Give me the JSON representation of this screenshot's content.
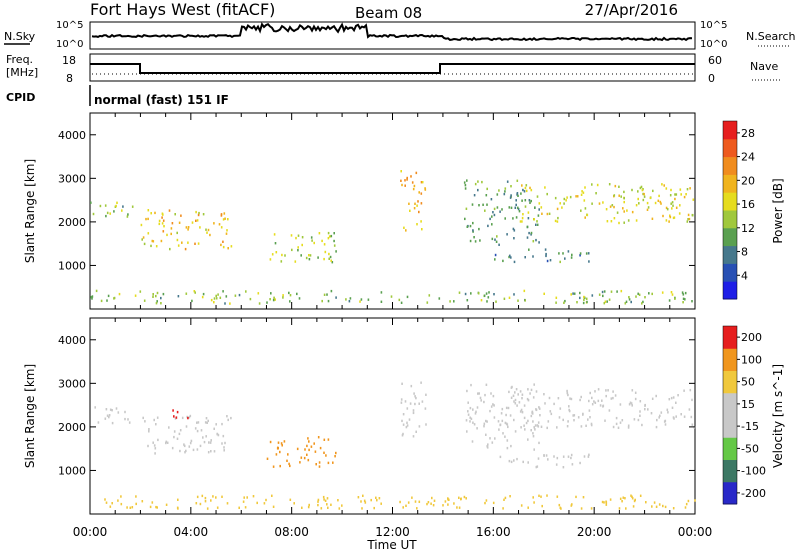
{
  "header": {
    "title": "Fort Hays West (fitACF)",
    "beam": "Beam 08",
    "date": "27/Apr/2016"
  },
  "panels": {
    "noise": {
      "left_label": "N.Sky",
      "right_label": "N.Search",
      "left_ticks": [
        "10^5",
        "10^0"
      ],
      "right_ticks": [
        "10^5",
        "10^0"
      ]
    },
    "freq": {
      "left_label_1": "Freq.",
      "left_label_2": "[MHz]",
      "right_label": "Nave",
      "left_ticks": [
        "18",
        "8"
      ],
      "right_ticks": [
        "60",
        "0"
      ]
    },
    "cpid": {
      "label": "CPID",
      "text": "normal (fast) 151 IF"
    }
  },
  "chart_data": [
    {
      "type": "heatmap",
      "title": "",
      "xlabel": "Time UT",
      "ylabel": "Slant Range [km]",
      "xlim": [
        "00:00",
        "24:00"
      ],
      "ylim": [
        0,
        4500
      ],
      "x_ticks": [
        "00:00",
        "04:00",
        "08:00",
        "12:00",
        "16:00",
        "20:00",
        "00:00"
      ],
      "y_ticks": [
        1000,
        2000,
        3000,
        4000
      ],
      "colorbar": {
        "label": "Power [dB]",
        "ticks": [
          4,
          8,
          12,
          16,
          20,
          24,
          28
        ],
        "range": [
          0,
          30
        ],
        "colors": [
          "#1e1ee6",
          "#2850b4",
          "#46788c",
          "#5aa050",
          "#a0c83c",
          "#e6dc1e",
          "#f0b41e",
          "#f08c1e",
          "#ee5a1e",
          "#e61e1e"
        ]
      },
      "regions": [
        {
          "t": [
            0.0,
            1.8
          ],
          "r": [
            2100,
            2500
          ],
          "v": 12
        },
        {
          "t": [
            2.0,
            5.6
          ],
          "r": [
            1400,
            2300
          ],
          "v": 18
        },
        {
          "t": [
            7.0,
            9.8
          ],
          "r": [
            1100,
            1800
          ],
          "v": 14
        },
        {
          "t": [
            12.3,
            13.3
          ],
          "r": [
            1800,
            3200
          ],
          "v": 20
        },
        {
          "t": [
            14.8,
            17.8
          ],
          "r": [
            1500,
            3000
          ],
          "v": 10
        },
        {
          "t": [
            16.0,
            20.0
          ],
          "r": [
            1100,
            1400
          ],
          "v": 9
        },
        {
          "t": [
            17.0,
            24.0
          ],
          "r": [
            2000,
            2900
          ],
          "v": 16
        },
        {
          "t": [
            0.0,
            24.0
          ],
          "r": [
            150,
            450
          ],
          "v": 12
        }
      ]
    },
    {
      "type": "heatmap",
      "title": "",
      "xlabel": "Time UT",
      "ylabel": "Slant Range [km]",
      "xlim": [
        "00:00",
        "24:00"
      ],
      "ylim": [
        0,
        4500
      ],
      "x_ticks": [
        "00:00",
        "04:00",
        "08:00",
        "12:00",
        "16:00",
        "20:00",
        "00:00"
      ],
      "y_ticks": [
        1000,
        2000,
        3000,
        4000
      ],
      "colorbar": {
        "label": "Velocity [m s^-1]",
        "ticks": [
          200,
          100,
          50,
          15,
          -15,
          -50,
          -100,
          -200
        ],
        "colors": [
          "#2828c8",
          "#3c7864",
          "#64c846",
          "#c8c8c8",
          "#c8c8c8",
          "#f0c83c",
          "#f0961e",
          "#e61e1e"
        ]
      },
      "regions": [
        {
          "t": [
            0.0,
            1.8
          ],
          "r": [
            2100,
            2500
          ],
          "v": 0
        },
        {
          "t": [
            2.0,
            5.6
          ],
          "r": [
            1400,
            2300
          ],
          "v": -10
        },
        {
          "t": [
            3.2,
            4.0
          ],
          "r": [
            2200,
            2500
          ],
          "v": -120
        },
        {
          "t": [
            7.0,
            9.8
          ],
          "r": [
            1100,
            1800
          ],
          "v": -60
        },
        {
          "t": [
            12.3,
            13.3
          ],
          "r": [
            1800,
            3200
          ],
          "v": 40
        },
        {
          "t": [
            14.8,
            17.8
          ],
          "r": [
            1500,
            3000
          ],
          "v": 0
        },
        {
          "t": [
            16.0,
            20.0
          ],
          "r": [
            1100,
            1400
          ],
          "v": 0
        },
        {
          "t": [
            17.0,
            24.0
          ],
          "r": [
            2000,
            2900
          ],
          "v": 0
        },
        {
          "t": [
            0.0,
            24.0
          ],
          "r": [
            150,
            450
          ],
          "v": -40
        }
      ]
    }
  ]
}
